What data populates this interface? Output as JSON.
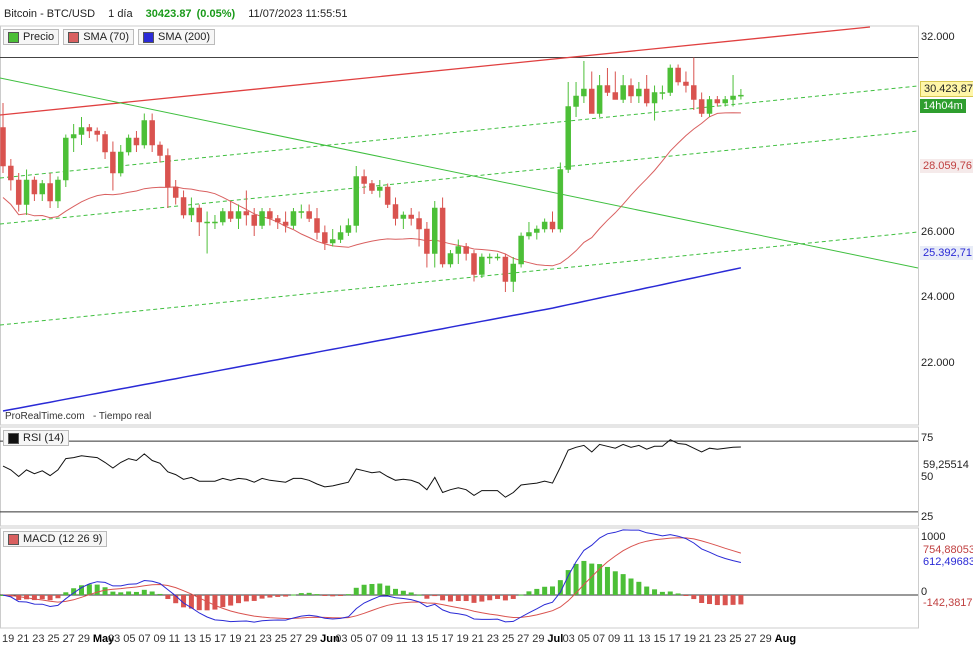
{
  "header": {
    "instrument": "Bitcoin - BTC/USD",
    "period": "1 día",
    "price": "30423.87",
    "change": "(0.05%)",
    "datetime": "11/07/2023 11:55:51"
  },
  "legend": {
    "price_label": "Precio",
    "sma70_label": "SMA (70)",
    "sma200_label": "SMA (200)"
  },
  "colors": {
    "up": "#4cbf37",
    "down": "#d9534f",
    "sma70": "#d96060",
    "sma200": "#2a2ad6",
    "resistance": "#e04040",
    "trend_green": "#3fbf3f"
  },
  "price_axis": {
    "ticks": [
      "32.000",
      "26.000",
      "24.000",
      "22.000"
    ],
    "last_price": "30.423,87",
    "countdown": "14h04m",
    "sma70_value": "28.059,76",
    "sma200_value": "25.392,71"
  },
  "footer": {
    "source": "ProRealTime.com",
    "mode": "- Tiempo real"
  },
  "rsi": {
    "label": "RSI (14)",
    "ticks": [
      "75",
      "50",
      "25"
    ],
    "value": "59,25514"
  },
  "macd": {
    "label": "MACD (12 26 9)",
    "ticks": [
      "1000",
      "0"
    ],
    "macd_value": "612,49683",
    "signal_value": "754,88053",
    "hist_value": "-142,3817"
  },
  "x_axis": {
    "labels": [
      "19",
      "21",
      "23",
      "25",
      "27",
      "29",
      "May",
      "03",
      "05",
      "07",
      "09",
      "11",
      "13",
      "15",
      "17",
      "19",
      "21",
      "23",
      "25",
      "27",
      "29",
      "Jun",
      "03",
      "05",
      "07",
      "09",
      "11",
      "13",
      "15",
      "17",
      "19",
      "21",
      "23",
      "25",
      "27",
      "29",
      "Jul",
      "03",
      "05",
      "07",
      "09",
      "11",
      "13",
      "15",
      "17",
      "19",
      "21",
      "23",
      "25",
      "27",
      "29",
      "Aug"
    ]
  },
  "chart_data": {
    "type": "candlestick",
    "ylim": [
      21000,
      32400
    ],
    "candles": [
      [
        29500,
        30200,
        28200,
        28400
      ],
      [
        28400,
        28600,
        27700,
        28000
      ],
      [
        28000,
        28200,
        27100,
        27300
      ],
      [
        27300,
        28300,
        27000,
        28000
      ],
      [
        28000,
        28100,
        27400,
        27600
      ],
      [
        27600,
        28000,
        27400,
        27900
      ],
      [
        27900,
        28200,
        27200,
        27400
      ],
      [
        27400,
        28100,
        27200,
        28000
      ],
      [
        28000,
        29300,
        27800,
        29200
      ],
      [
        29200,
        29600,
        28800,
        29300
      ],
      [
        29300,
        29800,
        29000,
        29500
      ],
      [
        29500,
        29600,
        29200,
        29400
      ],
      [
        29400,
        29500,
        29100,
        29300
      ],
      [
        29300,
        29400,
        28600,
        28800
      ],
      [
        28800,
        29100,
        27700,
        28200
      ],
      [
        28200,
        29000,
        28100,
        28800
      ],
      [
        28800,
        29300,
        28700,
        29200
      ],
      [
        29200,
        29400,
        28800,
        29000
      ],
      [
        29000,
        29900,
        28900,
        29700
      ],
      [
        29700,
        29900,
        28800,
        29000
      ],
      [
        29000,
        29100,
        28500,
        28700
      ],
      [
        28700,
        28900,
        27200,
        27800
      ],
      [
        27800,
        28000,
        27300,
        27500
      ],
      [
        27500,
        27700,
        26900,
        27000
      ],
      [
        27000,
        27500,
        26800,
        27200
      ],
      [
        27200,
        27300,
        26400,
        26800
      ],
      [
        26800,
        27100,
        25900,
        26800
      ],
      [
        26800,
        27000,
        26600,
        26800
      ],
      [
        26800,
        27200,
        26700,
        27100
      ],
      [
        27100,
        27400,
        26800,
        26900
      ],
      [
        26900,
        27300,
        26600,
        27100
      ],
      [
        27100,
        27700,
        26700,
        27000
      ],
      [
        27000,
        27200,
        26400,
        26700
      ],
      [
        26700,
        27200,
        26600,
        27100
      ],
      [
        27100,
        27200,
        26700,
        26900
      ],
      [
        26900,
        27000,
        26600,
        26800
      ],
      [
        26800,
        27100,
        26500,
        26700
      ],
      [
        26700,
        27200,
        26600,
        27100
      ],
      [
        27100,
        27300,
        26900,
        27100
      ],
      [
        27100,
        27300,
        26800,
        26900
      ],
      [
        26900,
        27200,
        26300,
        26500
      ],
      [
        26500,
        26700,
        26000,
        26200
      ],
      [
        26200,
        26600,
        26100,
        26300
      ],
      [
        26300,
        26700,
        26200,
        26500
      ],
      [
        26500,
        26900,
        26400,
        26700
      ],
      [
        26700,
        28400,
        26500,
        28100
      ],
      [
        28100,
        28300,
        27600,
        27900
      ],
      [
        27900,
        28000,
        27600,
        27700
      ],
      [
        27700,
        28000,
        27500,
        27800
      ],
      [
        27800,
        27900,
        27200,
        27300
      ],
      [
        27300,
        27500,
        26700,
        26900
      ],
      [
        26900,
        27100,
        26600,
        27000
      ],
      [
        27000,
        27200,
        26700,
        26900
      ],
      [
        26900,
        27100,
        26100,
        26600
      ],
      [
        26600,
        26800,
        25500,
        25900
      ],
      [
        25900,
        27400,
        25500,
        27200
      ],
      [
        27200,
        27500,
        25500,
        25600
      ],
      [
        25600,
        26000,
        25500,
        25900
      ],
      [
        25900,
        26300,
        25600,
        26100
      ],
      [
        26100,
        26200,
        25700,
        25900
      ],
      [
        25900,
        26000,
        25100,
        25300
      ],
      [
        25300,
        25900,
        25200,
        25800
      ],
      [
        25800,
        25900,
        25600,
        25800
      ],
      [
        25800,
        25900,
        25700,
        25800
      ],
      [
        25800,
        25900,
        24800,
        25100
      ],
      [
        25100,
        25800,
        24800,
        25600
      ],
      [
        25600,
        26500,
        25500,
        26400
      ],
      [
        26400,
        26800,
        26300,
        26500
      ],
      [
        26500,
        26700,
        26300,
        26600
      ],
      [
        26600,
        26900,
        26500,
        26800
      ],
      [
        26800,
        27100,
        26500,
        26600
      ],
      [
        26600,
        28500,
        26500,
        28300
      ],
      [
        28300,
        30800,
        28200,
        30100
      ],
      [
        30100,
        30800,
        29800,
        30400
      ],
      [
        30400,
        31400,
        30200,
        30600
      ],
      [
        30600,
        31100,
        29900,
        29900
      ],
      [
        29900,
        31000,
        29800,
        30700
      ],
      [
        30700,
        31200,
        30400,
        30500
      ],
      [
        30500,
        31100,
        30300,
        30300
      ],
      [
        30300,
        31000,
        30200,
        30700
      ],
      [
        30700,
        30900,
        30200,
        30400
      ],
      [
        30400,
        30800,
        30200,
        30600
      ],
      [
        30600,
        31000,
        30100,
        30200
      ],
      [
        30200,
        30700,
        29700,
        30500
      ],
      [
        30500,
        30700,
        30300,
        30500
      ],
      [
        30500,
        31300,
        30400,
        31200
      ],
      [
        31200,
        31300,
        30700,
        30800
      ],
      [
        30800,
        31100,
        30500,
        30700
      ],
      [
        30700,
        31500,
        30000,
        30300
      ],
      [
        30300,
        30500,
        29800,
        29900
      ],
      [
        29900,
        30400,
        29800,
        30300
      ],
      [
        30300,
        30400,
        30100,
        30200
      ],
      [
        30200,
        30400,
        30100,
        30300
      ],
      [
        30300,
        31000,
        30100,
        30400
      ],
      [
        30400,
        30600,
        30300,
        30424
      ]
    ]
  }
}
